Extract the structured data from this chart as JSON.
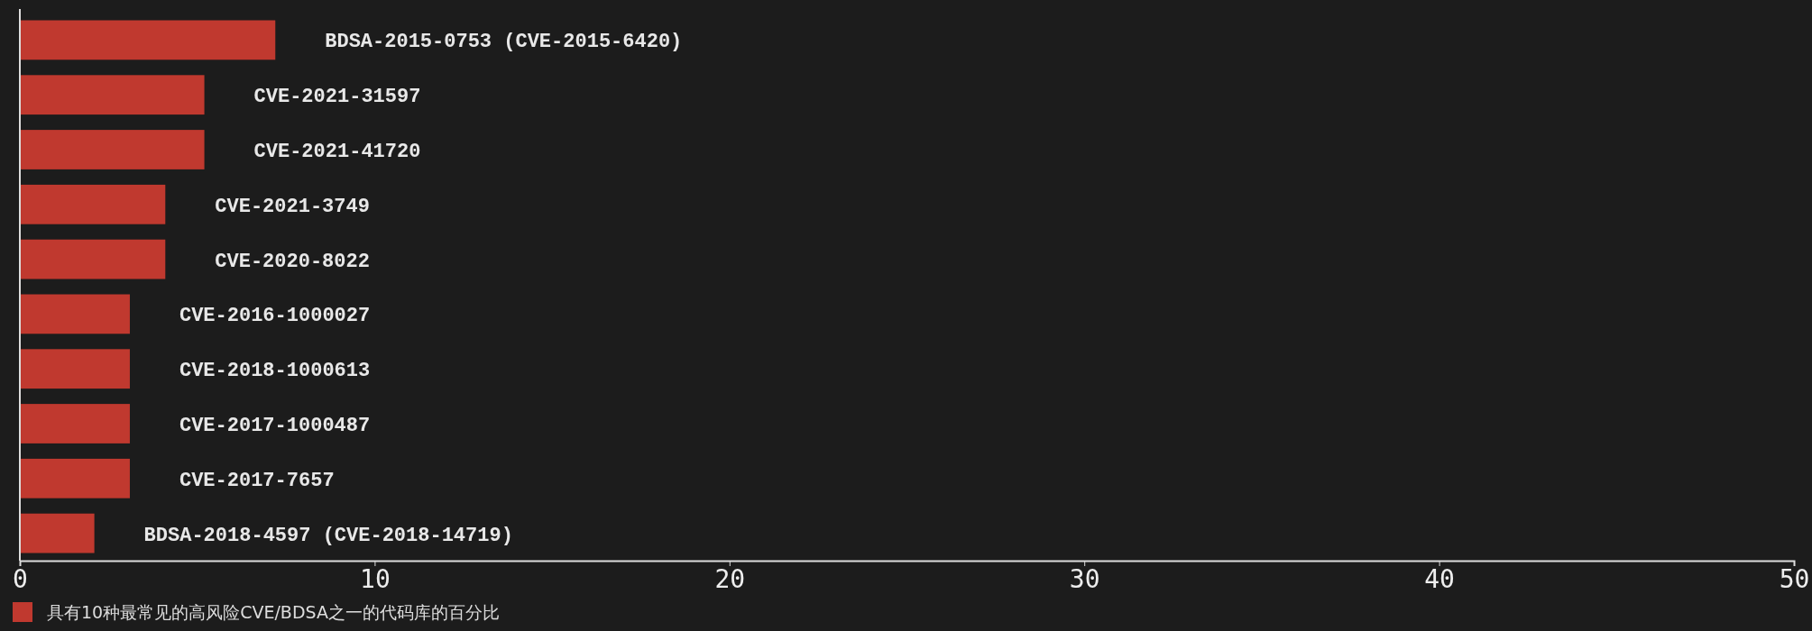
{
  "chart_data": {
    "type": "bar",
    "orientation": "horizontal",
    "categories": [
      "BDSA-2015-0753 (CVE-2015-6420)",
      "CVE-2021-31597",
      "CVE-2021-41720",
      "CVE-2021-3749",
      "CVE-2020-8022",
      "CVE-2016-1000027",
      "CVE-2018-1000613",
      "CVE-2017-1000487",
      "CVE-2017-7657",
      "BDSA-2018-4597 (CVE-2018-14719)"
    ],
    "series": [
      {
        "name": "具有10种最常见的高风险CVE/BDSA之一的代码库的百分比",
        "color": "#c0392f",
        "values": [
          7.2,
          5.2,
          5.2,
          4.1,
          4.1,
          3.1,
          3.1,
          3.1,
          3.1,
          2.1
        ]
      }
    ],
    "xlim": [
      0,
      50
    ],
    "xticks": [
      0,
      10,
      20,
      30,
      40,
      50
    ],
    "grid": false,
    "legend": "bottom"
  }
}
